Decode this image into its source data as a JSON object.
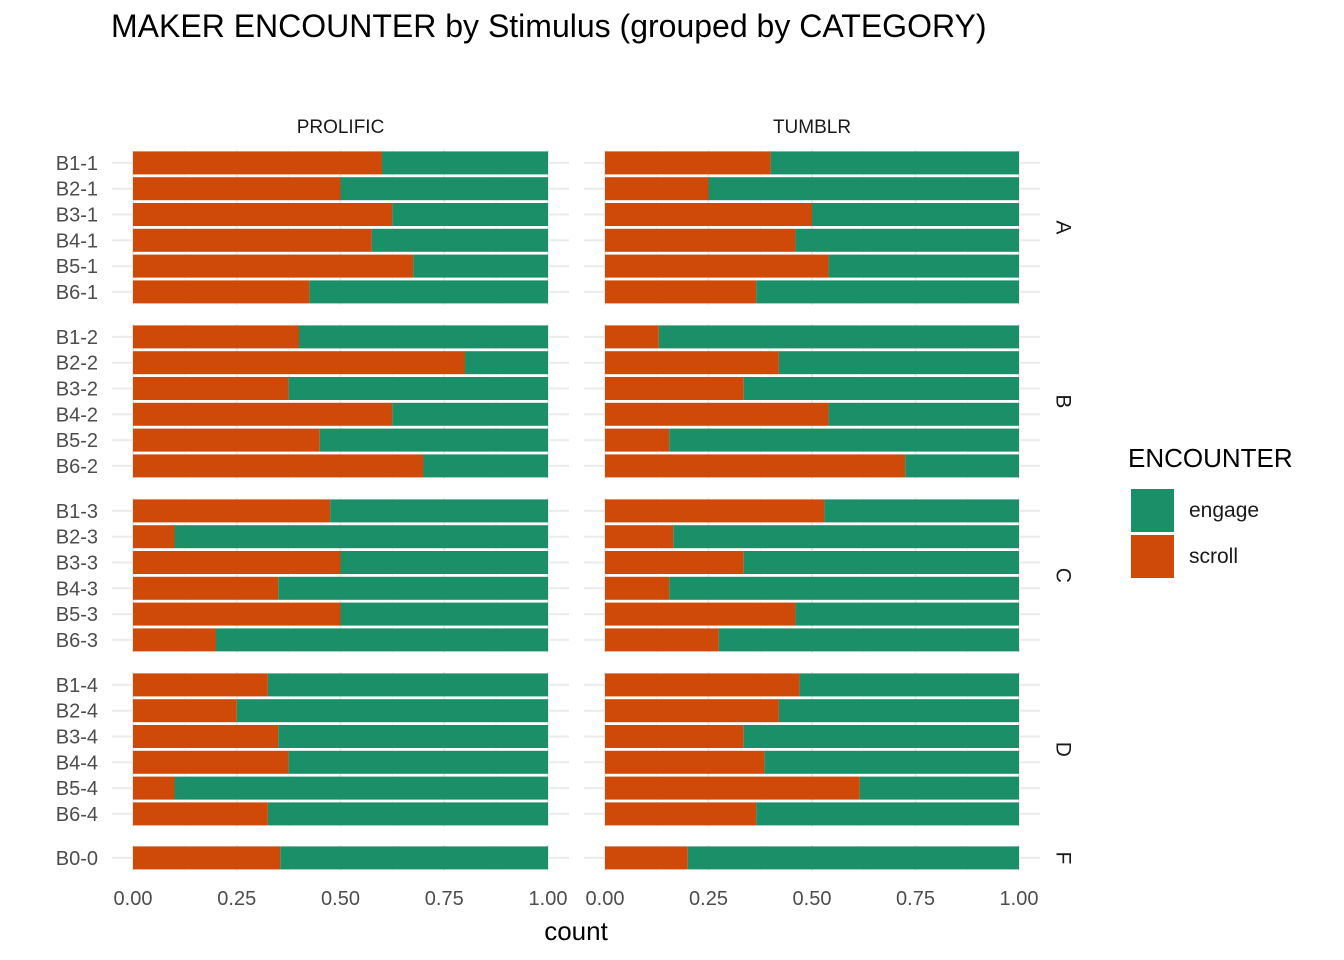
{
  "chart_data": {
    "type": "bar",
    "orientation": "horizontal",
    "stacked": true,
    "title": "MAKER ENCOUNTER by Stimulus (grouped by CATEGORY)",
    "xlabel": "count",
    "ylabel": "",
    "xlim": [
      0,
      1
    ],
    "x_ticks": [
      "0.00",
      "0.25",
      "0.50",
      "0.75",
      "1.00"
    ],
    "grid": true,
    "legend": {
      "title": "ENCOUNTER",
      "placement": "right",
      "items": [
        {
          "label": "engage",
          "color": "#1b9068"
        },
        {
          "label": "scroll",
          "color": "#cf4a09"
        }
      ]
    },
    "columns": [
      "PROLIFIC",
      "TUMBLR"
    ],
    "row_groups": [
      {
        "label": "A",
        "categories": [
          "B1-1",
          "B2-1",
          "B3-1",
          "B4-1",
          "B5-1",
          "B6-1"
        ]
      },
      {
        "label": "B",
        "categories": [
          "B1-2",
          "B2-2",
          "B3-2",
          "B4-2",
          "B5-2",
          "B6-2"
        ]
      },
      {
        "label": "C",
        "categories": [
          "B1-3",
          "B2-3",
          "B3-3",
          "B4-3",
          "B5-3",
          "B6-3"
        ]
      },
      {
        "label": "D",
        "categories": [
          "B1-4",
          "B2-4",
          "B3-4",
          "B4-4",
          "B5-4",
          "B6-4"
        ]
      },
      {
        "label": "F",
        "categories": [
          "B0-0"
        ]
      }
    ],
    "scroll_share": {
      "PROLIFIC": {
        "A": [
          0.6,
          0.5,
          0.625,
          0.575,
          0.675,
          0.425
        ],
        "B": [
          0.4,
          0.8,
          0.375,
          0.625,
          0.45,
          0.7
        ],
        "C": [
          0.475,
          0.1,
          0.5,
          0.35,
          0.5,
          0.2
        ],
        "D": [
          0.325,
          0.25,
          0.35,
          0.375,
          0.1,
          0.325
        ],
        "F": [
          0.355
        ]
      },
      "TUMBLR": {
        "A": [
          0.4,
          0.25,
          0.5,
          0.46,
          0.54,
          0.365
        ],
        "B": [
          0.13,
          0.42,
          0.335,
          0.54,
          0.155,
          0.725
        ],
        "C": [
          0.53,
          0.165,
          0.335,
          0.155,
          0.46,
          0.275
        ],
        "D": [
          0.47,
          0.42,
          0.335,
          0.385,
          0.615,
          0.365
        ],
        "F": [
          0.2
        ]
      }
    }
  }
}
